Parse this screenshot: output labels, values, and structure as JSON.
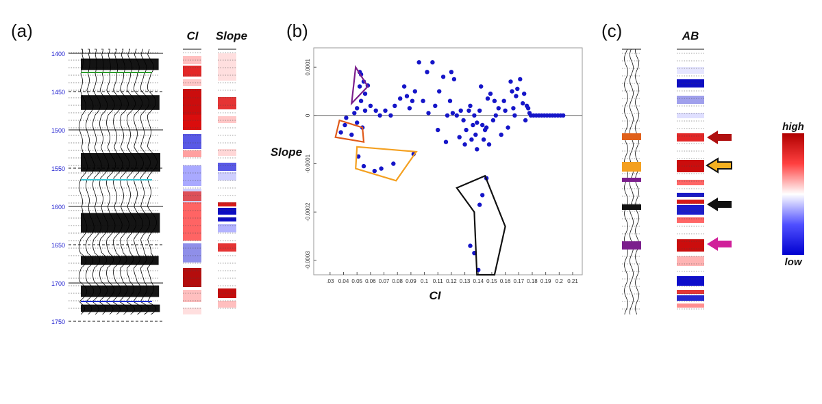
{
  "panel_a": {
    "label": "(a)",
    "col_ci": "CI",
    "col_slope": "Slope",
    "depth_ticks": [
      "1400",
      "1450",
      "1500",
      "1550",
      "1600",
      "1650",
      "1700",
      "1750"
    ],
    "horizon_colors": [
      "#2e9e2e",
      "#3cc8d8",
      "#1c2fd0"
    ]
  },
  "panel_b": {
    "label": "(b)",
    "xlabel": "CI",
    "ylabel": "Slope",
    "cluster_colors": {
      "purple": "#7b1f8c",
      "orange_red": "#e05a1a",
      "orange": "#f4a020",
      "black": "#111111"
    },
    "point_color": "#1515c8"
  },
  "panel_c": {
    "label": "(c)",
    "col_ab": "AB",
    "colorbar_high": "high",
    "colorbar_low": "low",
    "arrow_colors": [
      "#b01010",
      "#f4b020",
      "#111111",
      "#d0209a"
    ]
  },
  "chart_data": {
    "type": "scatter",
    "title": "",
    "xlabel": "CI",
    "ylabel": "Slope",
    "xlim": [
      0.025,
      0.21
    ],
    "ylim": [
      -0.00033,
      0.00014
    ],
    "x_ticks": [
      ".03",
      "0.04",
      "0.05",
      "0.06",
      "0.07",
      "0.08",
      "0.09",
      "0.1",
      "0.11",
      "0.12",
      "0.13",
      "0.14",
      "0.15",
      "0.16",
      "0.17",
      "0.18",
      "0.19",
      "0.2",
      "0.21",
      "0.2"
    ],
    "y_ticks": [
      "0.0001",
      "0",
      "-0.0001",
      "-0.0002",
      "-0.0003"
    ],
    "series": [
      {
        "points": [
          [
            0.052,
            9e-05
          ],
          [
            0.053,
            8.5e-05
          ],
          [
            0.055,
            7e-05
          ],
          [
            0.058,
            6.2e-05
          ],
          [
            0.052,
            6e-05
          ],
          [
            0.056,
            4.5e-05
          ],
          [
            0.053,
            3e-05
          ],
          [
            0.05,
            1.5e-05
          ],
          [
            0.048,
            5e-06
          ],
          [
            0.056,
            1e-05
          ],
          [
            0.06,
            2e-05
          ],
          [
            0.064,
            1e-05
          ],
          [
            0.067,
            0.0
          ],
          [
            0.071,
            1e-05
          ],
          [
            0.075,
            0.0
          ],
          [
            0.078,
            2e-05
          ],
          [
            0.082,
            3.5e-05
          ],
          [
            0.085,
            6e-05
          ],
          [
            0.087,
            4e-05
          ],
          [
            0.089,
            1.5e-05
          ],
          [
            0.091,
            3e-05
          ],
          [
            0.093,
            5e-05
          ],
          [
            0.096,
            0.00011
          ],
          [
            0.102,
            9e-05
          ],
          [
            0.106,
            0.00011
          ],
          [
            0.099,
            3e-05
          ],
          [
            0.103,
            5e-06
          ],
          [
            0.108,
            2e-05
          ],
          [
            0.111,
            5e-05
          ],
          [
            0.114,
            8e-05
          ],
          [
            0.117,
            0.0
          ],
          [
            0.12,
            9e-05
          ],
          [
            0.122,
            7.5e-05
          ],
          [
            0.119,
            3e-05
          ],
          [
            0.121,
            5e-06
          ],
          [
            0.124,
            0.0
          ],
          [
            0.127,
            1e-05
          ],
          [
            0.129,
            -1e-05
          ],
          [
            0.131,
            -3e-05
          ],
          [
            0.133,
            1e-05
          ],
          [
            0.134,
            2e-05
          ],
          [
            0.136,
            -2e-05
          ],
          [
            0.137,
            0.0
          ],
          [
            0.138,
            -4e-05
          ],
          [
            0.139,
            -1.5e-05
          ],
          [
            0.141,
            1e-05
          ],
          [
            0.143,
            -2e-05
          ],
          [
            0.144,
            -5e-05
          ],
          [
            0.146,
            -2.5e-05
          ],
          [
            0.147,
            3.5e-05
          ],
          [
            0.149,
            4.5e-05
          ],
          [
            0.151,
            -1e-05
          ],
          [
            0.152,
            3e-05
          ],
          [
            0.153,
            0.0
          ],
          [
            0.155,
            1.5e-05
          ],
          [
            0.157,
            -4e-05
          ],
          [
            0.159,
            3e-05
          ],
          [
            0.16,
            1e-05
          ],
          [
            0.162,
            -2.5e-05
          ],
          [
            0.164,
            7e-05
          ],
          [
            0.166,
            1.5e-05
          ],
          [
            0.167,
            0.0
          ],
          [
            0.168,
            4e-05
          ],
          [
            0.169,
            5.5e-05
          ],
          [
            0.171,
            7.5e-05
          ],
          [
            0.173,
            2.5e-05
          ],
          [
            0.174,
            4.5e-05
          ],
          [
            0.175,
            -1e-05
          ],
          [
            0.176,
            2e-05
          ],
          [
            0.177,
            1.5e-05
          ],
          [
            0.178,
            5e-06
          ],
          [
            0.179,
            0.0
          ],
          [
            0.181,
            0.0
          ],
          [
            0.183,
            0.0
          ],
          [
            0.185,
            0.0
          ],
          [
            0.187,
            0.0
          ],
          [
            0.189,
            0.0
          ],
          [
            0.191,
            0.0
          ],
          [
            0.193,
            0.0
          ],
          [
            0.195,
            0.0
          ],
          [
            0.197,
            0.0
          ],
          [
            0.199,
            0.0
          ],
          [
            0.201,
            0.0
          ],
          [
            0.203,
            0.0
          ],
          [
            0.116,
            -5.5e-05
          ],
          [
            0.126,
            -4.5e-05
          ],
          [
            0.13,
            -6e-05
          ],
          [
            0.139,
            -7e-05
          ],
          [
            0.148,
            -6e-05
          ],
          [
            0.11,
            -3e-05
          ],
          [
            0.145,
            -3e-05
          ],
          [
            0.135,
            -5e-05
          ],
          [
            0.142,
            6e-05
          ],
          [
            0.165,
            5e-05
          ],
          [
            0.038,
            -3.5e-05
          ],
          [
            0.041,
            -2e-05
          ],
          [
            0.042,
            -5e-06
          ],
          [
            0.046,
            -4e-05
          ],
          [
            0.05,
            -1.5e-05
          ],
          [
            0.054,
            -2.5e-05
          ],
          [
            0.051,
            -8.5e-05
          ],
          [
            0.055,
            -0.000105
          ],
          [
            0.063,
            -0.000115
          ],
          [
            0.068,
            -0.00011
          ],
          [
            0.077,
            -0.0001
          ],
          [
            0.092,
            -8e-05
          ],
          [
            0.143,
            -0.000165
          ],
          [
            0.141,
            -0.000185
          ],
          [
            0.146,
            -0.00013
          ],
          [
            0.134,
            -0.00027
          ],
          [
            0.137,
            -0.000285
          ],
          [
            0.14,
            -0.00032
          ]
        ]
      }
    ]
  }
}
